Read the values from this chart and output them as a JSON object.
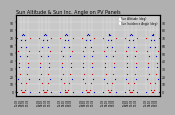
{
  "title": "Sun Altitude & Sun Inc. Angle on PV Panels",
  "title_fontsize": 3.5,
  "background_color": "#b0b0b0",
  "plot_bg_color": "#c8c8c8",
  "grid_color": "#e8e8e8",
  "blue_color": "#0000cc",
  "red_color": "#cc0000",
  "ylim": [
    -5,
    100
  ],
  "ytick_values": [
    0,
    10,
    20,
    30,
    40,
    50,
    60,
    70,
    80,
    90
  ],
  "num_days": 7,
  "hours_start": 5,
  "hours_end": 19,
  "points_per_day": 15,
  "sun_alt_peak": 75,
  "panel_tilt": 30,
  "legend_entries": [
    "Sun Altitude (deg)",
    "Sun Incidence Angle (deg)"
  ],
  "xtick_hours": [
    5,
    7,
    9,
    11,
    13,
    15,
    17,
    19
  ],
  "marker_size": 0.8
}
